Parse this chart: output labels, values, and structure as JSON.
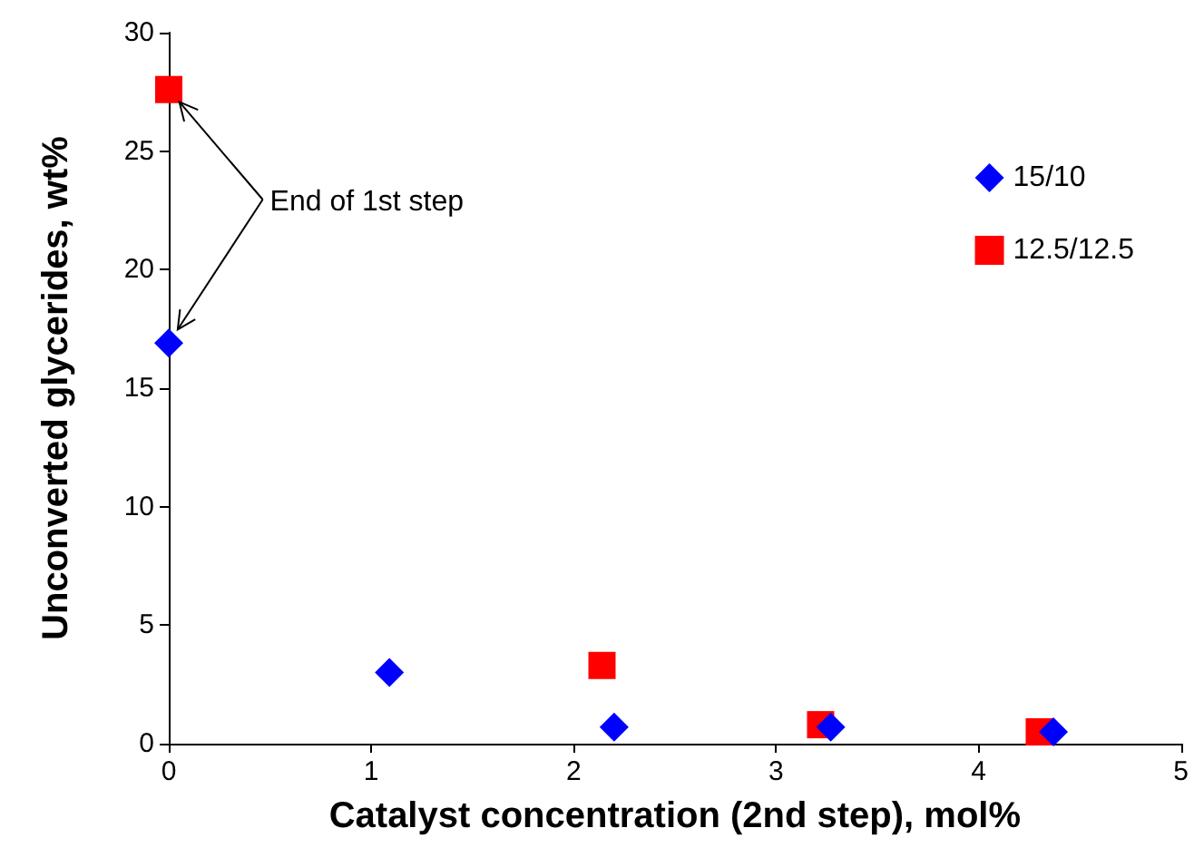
{
  "chart_data": {
    "type": "scatter",
    "xlabel": "Catalyst concentration (2nd step), mol%",
    "ylabel": "Unconverted glycerides, wt%",
    "annotations": [
      {
        "text": "End of 1st step",
        "x": 0,
        "y": 27.6
      }
    ],
    "series": [
      {
        "name": "15/10",
        "color": "#0000ff",
        "marker": "diamond",
        "x": [
          0,
          1.09,
          2.2,
          3.27,
          4.37
        ],
        "values": [
          16.9,
          3.0,
          0.7,
          0.7,
          0.5
        ]
      },
      {
        "name": "12.5/12.5",
        "color": "#ff0000",
        "marker": "square",
        "x": [
          0,
          2.14,
          3.22,
          4.3
        ],
        "values": [
          27.6,
          3.3,
          0.8,
          0.5
        ]
      }
    ],
    "xlim": [
      0,
      5
    ],
    "xticks": [
      0,
      1,
      2,
      3,
      4,
      5
    ],
    "ylim": [
      0,
      30
    ],
    "yticks": [
      0,
      5,
      10,
      15,
      20,
      25,
      30
    ],
    "grid": false,
    "legend": "top right"
  }
}
